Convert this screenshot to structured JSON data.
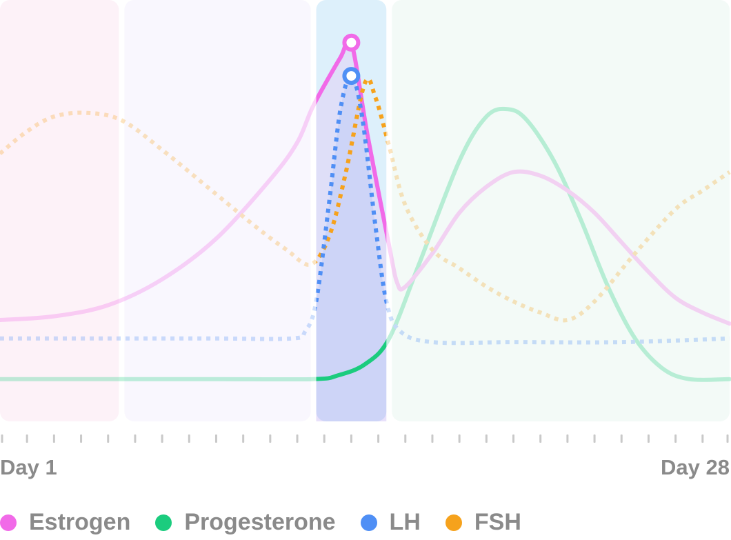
{
  "chart_data": {
    "type": "line",
    "x_range": [
      1,
      28
    ],
    "x_start_label": "Day 1",
    "x_end_label": "Day 28",
    "phases": [
      {
        "start": 1,
        "end": 5.5,
        "color": "#fdf2f8"
      },
      {
        "start": 5.5,
        "end": 12.6,
        "color": "#f9f7fe"
      },
      {
        "start": 12.6,
        "end": 15.4,
        "color": "#ddf0fb"
      },
      {
        "start": 15.4,
        "end": 28,
        "color": "#f3faf7"
      }
    ],
    "highlight_range": [
      12.6,
      15.4
    ],
    "series": [
      {
        "name": "Estrogen",
        "color": "#f16ae8",
        "style": "solid",
        "points": [
          [
            1,
            0.25
          ],
          [
            3,
            0.26
          ],
          [
            5,
            0.29
          ],
          [
            7,
            0.36
          ],
          [
            9,
            0.47
          ],
          [
            11,
            0.63
          ],
          [
            12,
            0.73
          ],
          [
            12.6,
            0.83
          ],
          [
            13.6,
            0.96
          ],
          [
            14,
            1.0
          ],
          [
            14.6,
            0.75
          ],
          [
            15.4,
            0.45
          ],
          [
            15.7,
            0.35
          ],
          [
            16,
            0.34
          ],
          [
            17,
            0.43
          ],
          [
            18,
            0.54
          ],
          [
            19,
            0.61
          ],
          [
            20,
            0.65
          ],
          [
            21,
            0.64
          ],
          [
            22,
            0.6
          ],
          [
            23,
            0.54
          ],
          [
            24,
            0.46
          ],
          [
            25,
            0.38
          ],
          [
            26,
            0.31
          ],
          [
            27,
            0.27
          ],
          [
            28,
            0.24
          ]
        ]
      },
      {
        "name": "Progesterone",
        "color": "#1bcc7e",
        "style": "solid",
        "points": [
          [
            1,
            0.09
          ],
          [
            5,
            0.09
          ],
          [
            9,
            0.09
          ],
          [
            12.6,
            0.09
          ],
          [
            13.5,
            0.1
          ],
          [
            14.5,
            0.13
          ],
          [
            15.4,
            0.2
          ],
          [
            16.5,
            0.4
          ],
          [
            18,
            0.68
          ],
          [
            19,
            0.8
          ],
          [
            19.8,
            0.82
          ],
          [
            20.5,
            0.79
          ],
          [
            21.5,
            0.68
          ],
          [
            22.5,
            0.52
          ],
          [
            23.5,
            0.34
          ],
          [
            24.5,
            0.2
          ],
          [
            25.5,
            0.12
          ],
          [
            26.5,
            0.09
          ],
          [
            28,
            0.09
          ]
        ]
      },
      {
        "name": "LH",
        "color": "#4f8ff5",
        "style": "dotted",
        "points": [
          [
            1,
            0.2
          ],
          [
            5,
            0.2
          ],
          [
            9,
            0.2
          ],
          [
            11.8,
            0.2
          ],
          [
            12.3,
            0.22
          ],
          [
            12.7,
            0.3
          ],
          [
            13.2,
            0.58
          ],
          [
            13.6,
            0.82
          ],
          [
            14,
            0.91
          ],
          [
            14.4,
            0.8
          ],
          [
            14.9,
            0.5
          ],
          [
            15.3,
            0.3
          ],
          [
            15.8,
            0.22
          ],
          [
            17,
            0.19
          ],
          [
            20,
            0.19
          ],
          [
            24,
            0.19
          ],
          [
            28,
            0.2
          ]
        ]
      },
      {
        "name": "FSH",
        "color": "#f6a21c",
        "style": "dotted",
        "points": [
          [
            1,
            0.7
          ],
          [
            2,
            0.76
          ],
          [
            3,
            0.8
          ],
          [
            4.2,
            0.81
          ],
          [
            5.5,
            0.79
          ],
          [
            7,
            0.71
          ],
          [
            9,
            0.59
          ],
          [
            10.5,
            0.5
          ],
          [
            11.6,
            0.44
          ],
          [
            12.5,
            0.4
          ],
          [
            13.2,
            0.48
          ],
          [
            13.8,
            0.65
          ],
          [
            14.5,
            0.89
          ],
          [
            14.9,
            0.85
          ],
          [
            15.4,
            0.72
          ],
          [
            16,
            0.56
          ],
          [
            17,
            0.44
          ],
          [
            18,
            0.39
          ],
          [
            19,
            0.34
          ],
          [
            20,
            0.3
          ],
          [
            21,
            0.27
          ],
          [
            22,
            0.25
          ],
          [
            23,
            0.3
          ],
          [
            24.5,
            0.43
          ],
          [
            26,
            0.55
          ],
          [
            27,
            0.6
          ],
          [
            28,
            0.65
          ]
        ]
      }
    ],
    "peak_markers": [
      {
        "series": "Estrogen",
        "x": 14,
        "y": 1.0
      },
      {
        "series": "LH",
        "x": 14,
        "y": 0.91
      }
    ],
    "legend": [
      "Estrogen",
      "Progesterone",
      "LH",
      "FSH"
    ],
    "legend_position": "bottom",
    "ylim": [
      0,
      1.05
    ],
    "grid": false
  }
}
